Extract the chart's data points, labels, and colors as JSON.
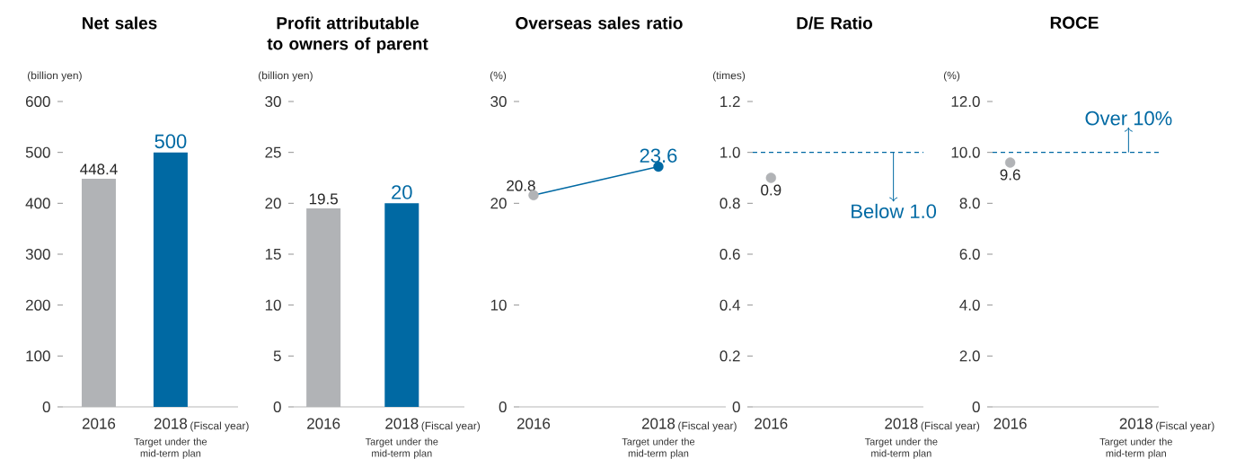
{
  "chart_data": [
    {
      "type": "bar",
      "title": "Net sales",
      "ylabel": "(billion yen)",
      "categories": [
        "2016",
        "2018"
      ],
      "values": [
        448.4,
        500
      ],
      "colors": [
        "#b1b3b6",
        "#0069a3"
      ],
      "ylim": [
        0,
        600
      ],
      "yticks": [
        0,
        100,
        200,
        300,
        400,
        500,
        600
      ],
      "data_labels": true,
      "annotations": [
        "(Fiscal year)",
        "Target under the mid-term plan"
      ]
    },
    {
      "type": "bar",
      "title": "Profit attributable to owners of parent",
      "ylabel": "(billion yen)",
      "categories": [
        "2016",
        "2018"
      ],
      "values": [
        19.5,
        20
      ],
      "colors": [
        "#b1b3b6",
        "#0069a3"
      ],
      "ylim": [
        0,
        30
      ],
      "yticks": [
        0,
        5,
        10,
        15,
        20,
        25,
        30
      ],
      "data_labels": true,
      "annotations": [
        "(Fiscal year)",
        "Target under the mid-term plan"
      ]
    },
    {
      "type": "line",
      "title": "Overseas sales ratio",
      "ylabel": "(%)",
      "categories": [
        "2016",
        "2018"
      ],
      "values": [
        20.8,
        23.6
      ],
      "color": "#0069a3",
      "colors": [
        "#b1b3b6",
        "#0069a3"
      ],
      "marker": "circle",
      "ylim": [
        0,
        30
      ],
      "yticks": [
        0,
        10,
        20,
        30
      ],
      "data_labels": true,
      "annotations": [
        "(Fiscal year)",
        "Target under the mid-term plan"
      ]
    },
    {
      "type": "scatter",
      "title": "D/E Ratio",
      "ylabel": "(times)",
      "categories": [
        "2016",
        "2018"
      ],
      "values": [
        0.9,
        null
      ],
      "color": "#b1b3b6",
      "marker": "circle",
      "ylim": [
        0,
        1.2
      ],
      "yticks": [
        0,
        0.2,
        0.4,
        0.6,
        0.8,
        {
          "value": 1,
          "label": "1.0"
        },
        1.2
      ],
      "data_labels": true,
      "ref_lines": [
        {
          "axis": "y",
          "value": 1,
          "color": "#0069a3",
          "line_style": "dashed",
          "label": "Below 1.0"
        }
      ],
      "annotations": [
        "(Fiscal year)",
        "Target under the mid-term plan"
      ]
    },
    {
      "type": "scatter",
      "title": "ROCE",
      "ylabel": "(%)",
      "categories": [
        "2016",
        "2018"
      ],
      "values": [
        9.6,
        null
      ],
      "color": "#b1b3b6",
      "marker": "circle",
      "ylim": [
        0,
        12
      ],
      "yticks": [
        0,
        {
          "value": 2,
          "label": "2.0"
        },
        {
          "value": 4,
          "label": "4.0"
        },
        {
          "value": 6,
          "label": "6.0"
        },
        {
          "value": 8,
          "label": "8.0"
        },
        {
          "value": 10,
          "label": "10.0"
        },
        {
          "value": 12,
          "label": "12.0"
        }
      ],
      "data_labels": true,
      "ref_lines": [
        {
          "axis": "y",
          "value": 10,
          "color": "#0069a3",
          "line_style": "dashed",
          "label": "Over 10%"
        }
      ],
      "annotations": [
        "(Fiscal year)",
        "Target under the mid-term plan"
      ]
    }
  ]
}
